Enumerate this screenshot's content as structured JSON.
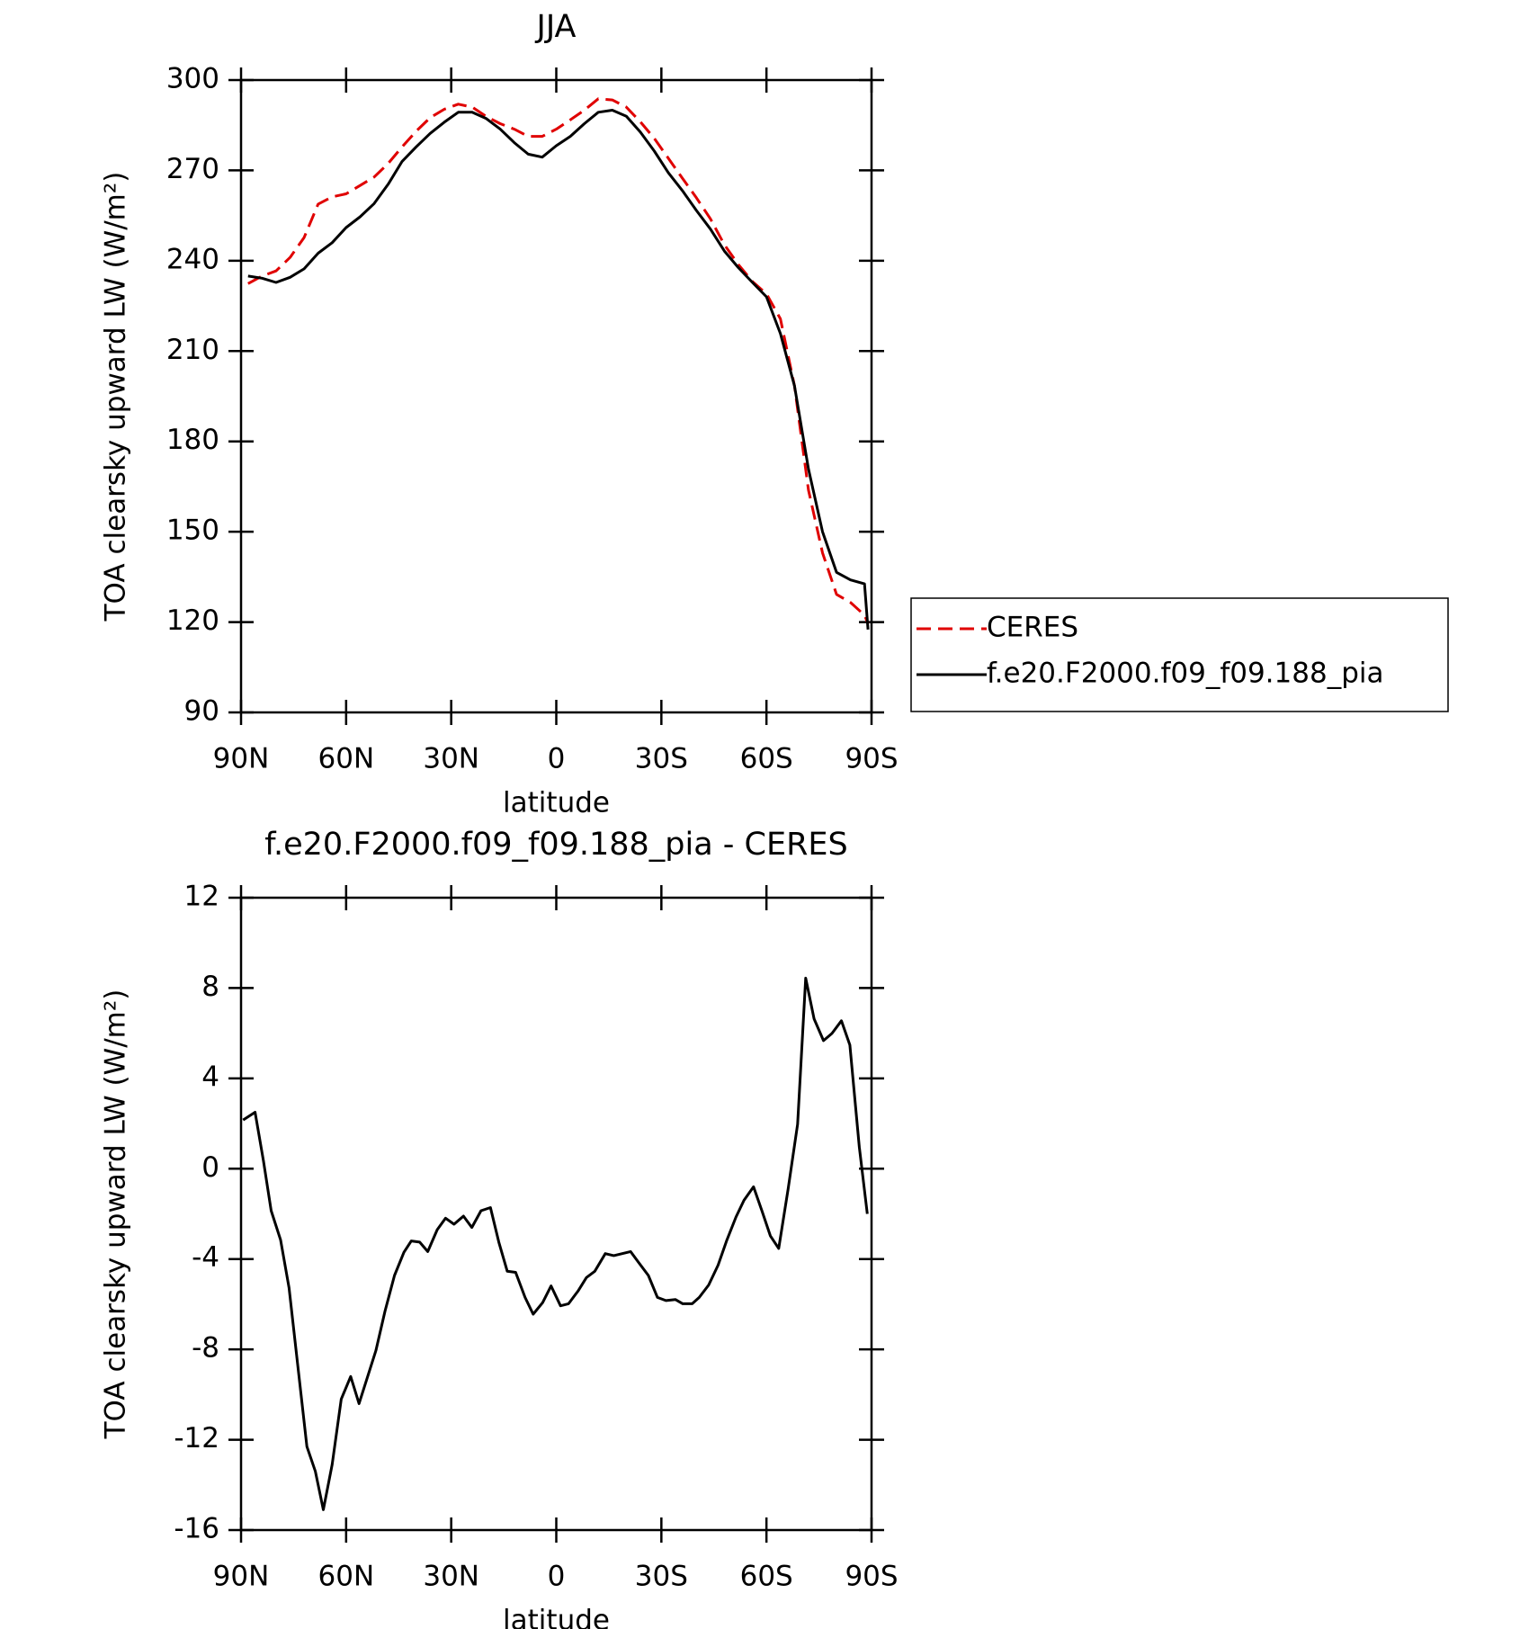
{
  "chart_data": [
    {
      "type": "line",
      "title": "JJA",
      "x_label": "latitude",
      "y_label": "TOA clearsky upward LW (W/m²)",
      "x": [
        88,
        84,
        80,
        76,
        72,
        68,
        64,
        60,
        56,
        52,
        48,
        44,
        40,
        36,
        32,
        28,
        24,
        20,
        16,
        12,
        8,
        4,
        0,
        -4,
        -8,
        -12,
        -16,
        -20,
        -24,
        -28,
        -32,
        -36,
        -40,
        -44,
        -48,
        -52,
        -56,
        -60,
        -64,
        -68,
        -72,
        -76,
        -80,
        -84,
        -88,
        -89
      ],
      "series": [
        {
          "name": "CERES",
          "color": "#e00000",
          "line_style": "dashed",
          "values": [
            232.4,
            234.9,
            236.6,
            241.1,
            247.7,
            258.8,
            261.2,
            262.2,
            265,
            267.8,
            272.3,
            277.8,
            283,
            287.5,
            290.3,
            292,
            291,
            287.9,
            285.5,
            283.7,
            281.3,
            281.3,
            283.7,
            286.8,
            290,
            293.8,
            293.4,
            291,
            286.1,
            280.6,
            274,
            267.4,
            260.9,
            253.9,
            245.3,
            238.7,
            233.1,
            229,
            220.7,
            198.5,
            163.8,
            143,
            129.2,
            126.5,
            122.3,
            119.5
          ]
        },
        {
          "name": "f.e20.F2000.f09_f09.188_pia",
          "color": "#000000",
          "line_style": "solid",
          "values": [
            234.9,
            234.2,
            232.8,
            234.5,
            237.3,
            242.5,
            246,
            251,
            254.6,
            259,
            265.4,
            273,
            277.8,
            282.3,
            286,
            289.3,
            289.3,
            287.2,
            283.7,
            279.2,
            275.4,
            274.4,
            278.2,
            281.3,
            285.5,
            289.3,
            290,
            288,
            282.7,
            276.4,
            269.2,
            263.3,
            256.7,
            250.5,
            243.2,
            237.7,
            232.8,
            228,
            215.8,
            198.5,
            170.8,
            150,
            136.5,
            134,
            132.7,
            117.5
          ]
        }
      ],
      "xlim": [
        90,
        -90
      ],
      "xticks": [
        {
          "value": 90,
          "label": "90N"
        },
        {
          "value": 60,
          "label": "60N"
        },
        {
          "value": 30,
          "label": "30N"
        },
        0,
        {
          "value": -30,
          "label": "30S"
        },
        {
          "value": -60,
          "label": "60S"
        },
        {
          "value": -90,
          "label": "90S"
        }
      ],
      "ylim": [
        90,
        300
      ],
      "yticks": [
        90,
        120,
        150,
        180,
        210,
        240,
        270,
        300
      ],
      "legend": "right",
      "grid": false
    },
    {
      "type": "line",
      "title": "f.e20.F2000.f09_f09.188_pia - CERES",
      "x_label": "latitude",
      "y_label": "TOA clearsky upward LW (W/m²)",
      "x": [
        89.4,
        86,
        83.6,
        81.4,
        78.7,
        76.3,
        71.2,
        68.8,
        66.5,
        64,
        61.4,
        58.7,
        56.3,
        51.5,
        48.9,
        46.2,
        43.5,
        41.4,
        39,
        36.7,
        34,
        31.6,
        29.2,
        26.5,
        24.1,
        21.5,
        18.8,
        16.4,
        14,
        11.6,
        8.9,
        6.6,
        3.9,
        1.5,
        -1.2,
        -3.5,
        -6.2,
        -8.6,
        -11,
        -14,
        -16.4,
        -21.2,
        -23.6,
        -26.3,
        -28.9,
        -31.3,
        -34,
        -36.1,
        -38.8,
        -40.8,
        -43.5,
        -46.2,
        -48.6,
        -51.3,
        -53.6,
        -56.3,
        -58.7,
        -61.1,
        -63.5,
        -66.2,
        -68.9,
        -71.2,
        -73.6,
        -76.3,
        -78.7,
        -81.4,
        -83.8,
        -86.5,
        -88.8
      ],
      "values": [
        2.16,
        2.5,
        0.35,
        -1.86,
        -3.16,
        -5.28,
        -12.3,
        -13.4,
        -15.1,
        -13.1,
        -10.2,
        -9.2,
        -10.4,
        -8.06,
        -6.3,
        -4.73,
        -3.7,
        -3.2,
        -3.25,
        -3.67,
        -2.7,
        -2.19,
        -2.46,
        -2.1,
        -2.6,
        -1.86,
        -1.72,
        -3.25,
        -4.54,
        -4.59,
        -5.7,
        -6.44,
        -5.93,
        -5.19,
        -6.07,
        -5.98,
        -5.42,
        -4.82,
        -4.54,
        -3.76,
        -3.85,
        -3.67,
        -4.17,
        -4.73,
        -5.7,
        -5.84,
        -5.79,
        -5.98,
        -5.98,
        -5.7,
        -5.15,
        -4.27,
        -3.2,
        -2.14,
        -1.4,
        -0.8,
        -1.86,
        -2.97,
        -3.53,
        -0.89,
        1.97,
        8.44,
        6.64,
        5.67,
        5.99,
        6.55,
        5.48,
        0.96,
        -2.0
      ],
      "color": "#000000",
      "xlim": [
        90,
        -90
      ],
      "xticks": [
        {
          "value": 90,
          "label": "90N"
        },
        {
          "value": 60,
          "label": "60N"
        },
        {
          "value": 30,
          "label": "30N"
        },
        0,
        {
          "value": -30,
          "label": "30S"
        },
        {
          "value": -60,
          "label": "60S"
        },
        {
          "value": -90,
          "label": "90S"
        }
      ],
      "ylim": [
        -16,
        12
      ],
      "yticks": [
        -16,
        -12,
        -8,
        -4,
        0,
        4,
        8,
        12
      ],
      "grid": false
    }
  ]
}
